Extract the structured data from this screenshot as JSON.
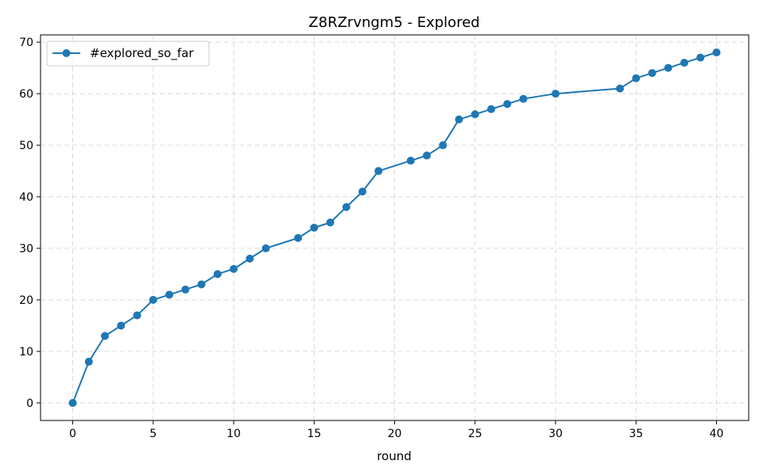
{
  "chart_data": {
    "type": "line",
    "title": "Z8RZrvngm5 - Explored",
    "xlabel": "round",
    "ylabel": "",
    "xlim": [
      -2,
      42
    ],
    "ylim": [
      -3.4,
      71.4
    ],
    "xticks": [
      0,
      5,
      10,
      15,
      20,
      25,
      30,
      35,
      40
    ],
    "yticks": [
      0,
      10,
      20,
      30,
      40,
      50,
      60,
      70
    ],
    "grid": true,
    "legend_position": "upper-left",
    "series": [
      {
        "name": "#explored_so_far",
        "color": "#1f77b4",
        "marker": "circle",
        "x": [
          0,
          1,
          2,
          3,
          4,
          5,
          6,
          7,
          8,
          9,
          10,
          11,
          12,
          14,
          15,
          16,
          17,
          18,
          19,
          21,
          22,
          23,
          24,
          25,
          26,
          27,
          28,
          30,
          34,
          35,
          36,
          37,
          38,
          39,
          40
        ],
        "y": [
          0,
          8,
          13,
          15,
          17,
          20,
          21,
          22,
          23,
          25,
          26,
          28,
          30,
          32,
          34,
          35,
          38,
          41,
          45,
          47,
          48,
          50,
          55,
          56,
          57,
          58,
          59,
          60,
          61,
          63,
          64,
          65,
          66,
          67,
          68
        ]
      }
    ]
  }
}
